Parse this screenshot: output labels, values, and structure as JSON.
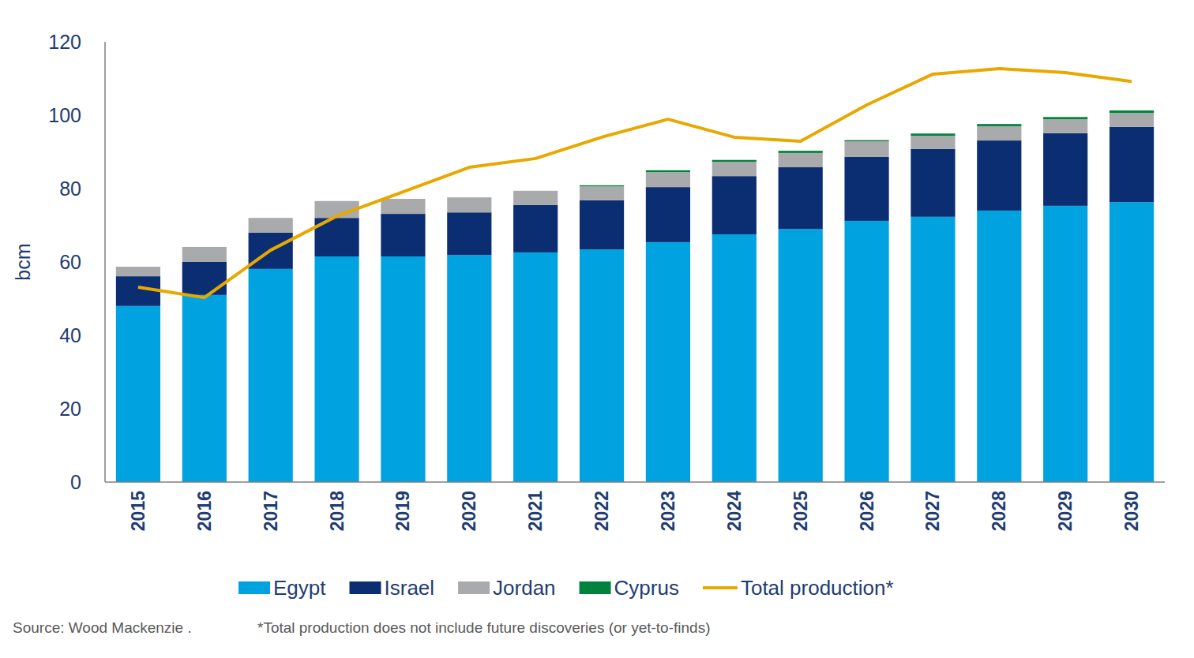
{
  "chart_data": {
    "type": "bar",
    "stacked": true,
    "grid": false,
    "legend": "bottom",
    "y_label": "bcm",
    "annotations": [
      "Source: Wood Mackenzie .",
      "*Total production does not include future discoveries (or yet-to-finds)"
    ],
    "categories": [
      "2015",
      "2016",
      "2017",
      "2018",
      "2019",
      "2020",
      "2021",
      "2022",
      "2023",
      "2024",
      "2025",
      "2026",
      "2027",
      "2028",
      "2029",
      "2030"
    ],
    "ylim": [
      0,
      120
    ],
    "yticks": [
      0,
      20,
      40,
      60,
      80,
      100,
      120
    ],
    "series": [
      {
        "name": "Egypt",
        "type": "bar",
        "color": "#00a3e0",
        "values": [
          48.0,
          51.0,
          58.1,
          61.5,
          61.5,
          61.9,
          62.6,
          63.4,
          65.4,
          67.5,
          69.0,
          71.2,
          72.3,
          74.0,
          75.3,
          76.3
        ]
      },
      {
        "name": "Israel",
        "type": "bar",
        "color": "#0b2d71",
        "values": [
          8.1,
          9.0,
          9.9,
          10.5,
          11.6,
          11.6,
          12.9,
          13.4,
          15.0,
          15.9,
          16.8,
          17.4,
          18.5,
          19.1,
          19.8,
          20.5
        ]
      },
      {
        "name": "Jordan",
        "type": "bar",
        "color": "#a9aaac",
        "values": [
          2.6,
          4.1,
          4.0,
          4.6,
          4.1,
          4.1,
          3.9,
          3.8,
          4.1,
          3.9,
          3.9,
          4.3,
          3.6,
          3.9,
          3.8,
          3.8
        ]
      },
      {
        "name": "Cyprus",
        "type": "bar",
        "color": "#00843d",
        "values": [
          0,
          0,
          0,
          0,
          0,
          0,
          0,
          0.3,
          0.5,
          0.5,
          0.6,
          0.3,
          0.6,
          0.6,
          0.6,
          0.7
        ]
      },
      {
        "name": "Total production*",
        "type": "line",
        "color": "#e8a800",
        "values": [
          53.1,
          50.3,
          63.2,
          72.5,
          79.1,
          85.8,
          88.2,
          94.0,
          98.9,
          94.0,
          92.9,
          102.8,
          111.2,
          112.7,
          111.6,
          109.2
        ]
      }
    ]
  }
}
